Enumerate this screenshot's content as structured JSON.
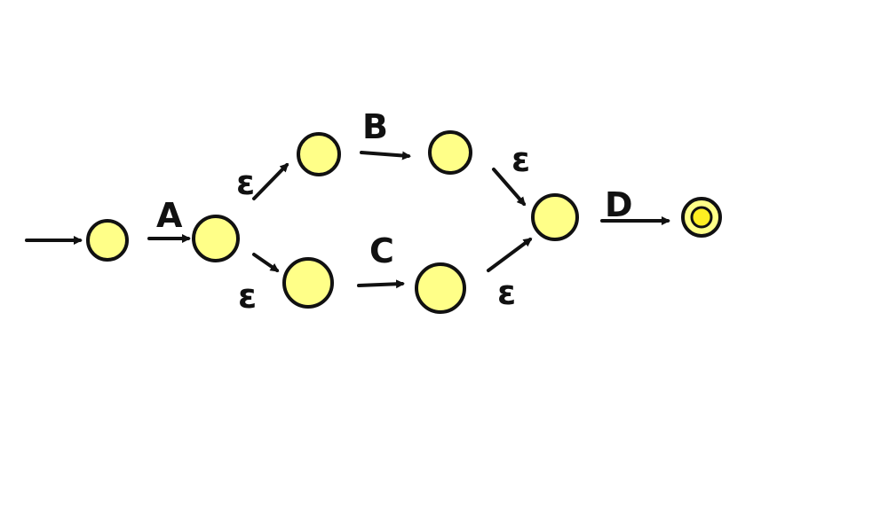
{
  "diagram": {
    "type": "epsilon-nfa",
    "colors": {
      "state_fill": "#ffff88",
      "stroke": "#111111",
      "accept_inner_fill": "#ffee22"
    },
    "states": [
      {
        "id": "s0",
        "role": "start"
      },
      {
        "id": "s1",
        "role": "normal"
      },
      {
        "id": "s2",
        "role": "normal"
      },
      {
        "id": "s3",
        "role": "normal"
      },
      {
        "id": "s4",
        "role": "normal"
      },
      {
        "id": "s5",
        "role": "normal"
      },
      {
        "id": "s6",
        "role": "normal"
      },
      {
        "id": "s7",
        "role": "accept"
      }
    ],
    "transitions": [
      {
        "from": "s0",
        "to": "s1",
        "label": "A"
      },
      {
        "from": "s1",
        "to": "s2",
        "label": "ε"
      },
      {
        "from": "s2",
        "to": "s3",
        "label": "B"
      },
      {
        "from": "s3",
        "to": "s6",
        "label": "ε"
      },
      {
        "from": "s1",
        "to": "s4",
        "label": "ε"
      },
      {
        "from": "s4",
        "to": "s5",
        "label": "C"
      },
      {
        "from": "s5",
        "to": "s6",
        "label": "ε"
      },
      {
        "from": "s6",
        "to": "s7",
        "label": "D"
      }
    ]
  }
}
